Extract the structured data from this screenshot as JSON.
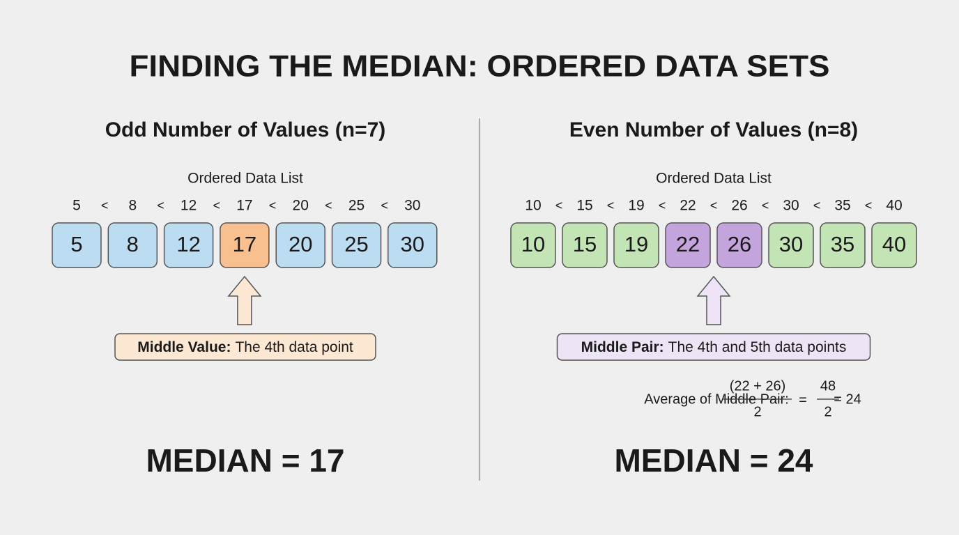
{
  "title": "FINDING THE MEDIAN: ORDERED DATA SETS",
  "panels": [
    {
      "heading": "Odd Number of Values (n=7)",
      "list_label": "Ordered Data List",
      "separator": "<",
      "values": [
        5,
        8,
        12,
        17,
        20,
        25,
        30
      ],
      "highlight": [
        3
      ],
      "color": "#bcdcf1",
      "highlight_color": "#f8bf8f",
      "arrow_color": "#fde8d3",
      "callout": {
        "bold": "Middle Value:",
        "text": "The 4th data point",
        "color": "#fde8d3"
      },
      "result": "MEDIAN = 17"
    },
    {
      "heading": "Even Number of Values (n=8)",
      "list_label": "Ordered Data List",
      "separator": "<",
      "values": [
        10,
        15,
        19,
        22,
        26,
        30,
        35,
        40
      ],
      "highlight": [
        3,
        4
      ],
      "color": "#c3e5b5",
      "highlight_color": "#c4a4dd",
      "arrow_color": "#ede2f6",
      "callout": {
        "bold": "Middle Pair:",
        "text": "The 4th and 5th data points",
        "color": "#ede4f6"
      },
      "formula": {
        "label": "Average of Middle Pair:",
        "fraction1": {
          "numerator": "(22 + 26)",
          "denominator": 2
        },
        "equals": "=",
        "fraction2": {
          "numerator": 48,
          "denominator": 2
        },
        "result": "= 24"
      },
      "result": "MEDIAN = 24"
    }
  ]
}
